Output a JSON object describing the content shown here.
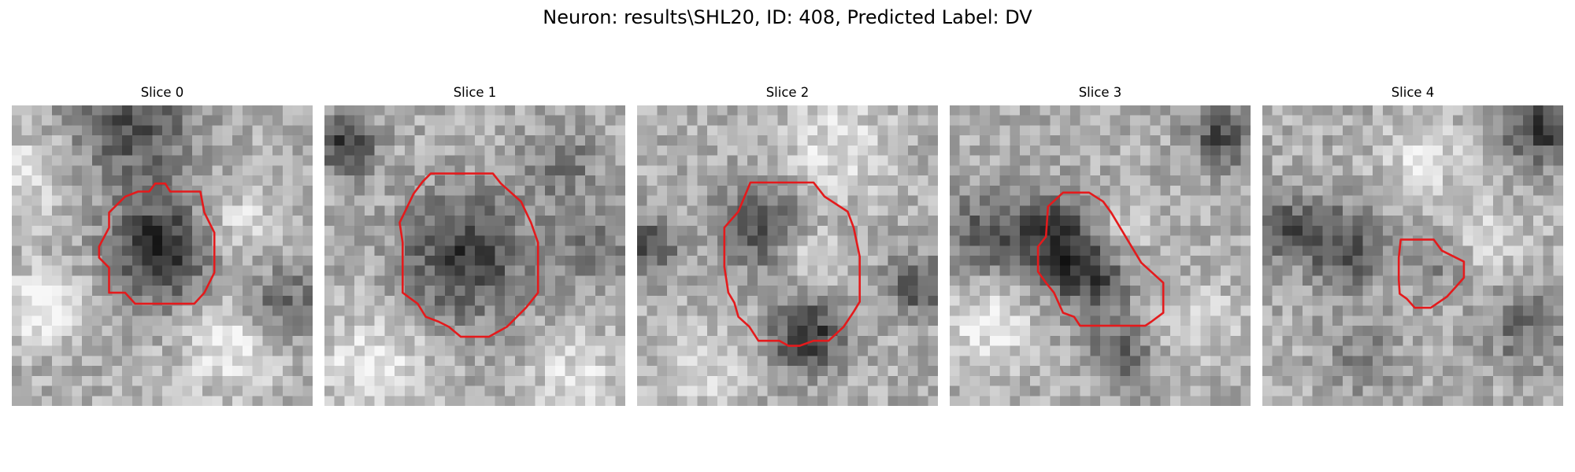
{
  "figure": {
    "title": "Neuron: results\\SHL20, ID: 408, Predicted Label: DV",
    "slices": [
      {
        "title": "Slice 0"
      },
      {
        "title": "Slice 1"
      },
      {
        "title": "Slice 2"
      },
      {
        "title": "Slice 3"
      },
      {
        "title": "Slice 4"
      }
    ],
    "colors": {
      "contour": "#e41a1c",
      "colormap": "grayscale"
    }
  }
}
